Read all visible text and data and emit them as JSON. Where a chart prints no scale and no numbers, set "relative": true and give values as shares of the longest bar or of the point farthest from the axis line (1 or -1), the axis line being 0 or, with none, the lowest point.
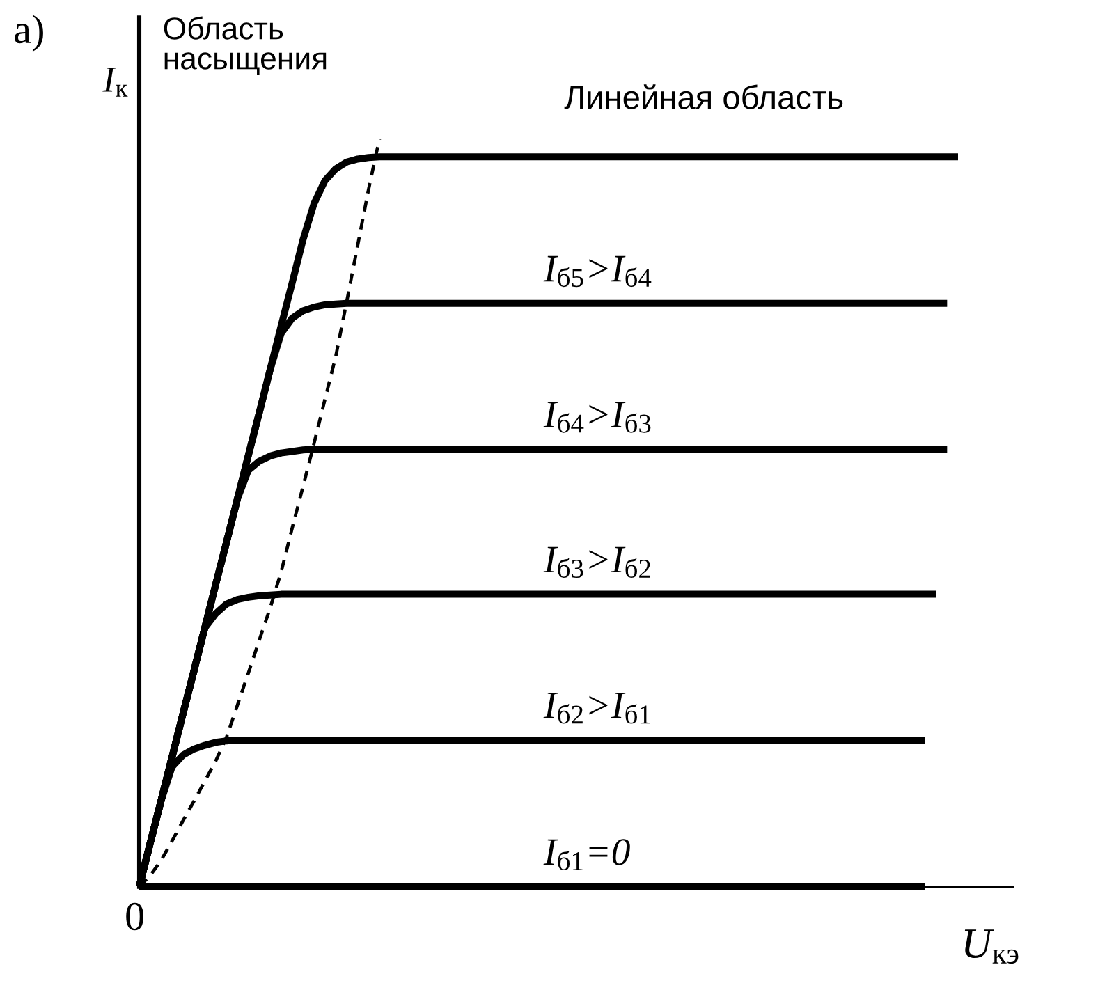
{
  "chart_data": {
    "type": "line",
    "relative": true,
    "xlabel": "U$_{кэ}$",
    "ylabel": "I$_{к}$",
    "tick_labels": false,
    "line_style": "solid",
    "annotations": [
      "а)",
      "Область\nнасыщения",
      "Линейная область",
      "0"
    ],
    "categories": [
      null,
      null,
      null,
      null,
      null,
      null,
      null,
      null,
      null,
      null,
      null,
      null,
      null,
      null,
      null,
      null,
      null,
      null,
      null,
      null,
      null,
      null,
      null,
      null,
      null,
      null,
      null,
      null,
      null,
      null,
      null,
      null,
      null,
      null,
      null,
      null,
      null,
      null,
      null,
      null,
      null,
      null,
      null,
      null,
      null,
      null,
      null,
      null,
      null,
      null,
      null,
      null,
      null,
      null,
      null,
      null,
      null,
      null,
      null,
      null,
      null,
      null,
      null,
      null,
      null,
      null,
      null,
      null,
      null,
      null,
      null,
      null,
      null,
      null,
      null,
      null,
      null,
      null,
      null,
      null,
      null
    ],
    "series": [
      {
        "color": "#000000",
        "values": [
          0,
          0.058,
          0.115,
          0.173,
          0.231,
          0.288,
          0.346,
          0.404,
          0.461,
          0.519,
          0.577,
          0.634,
          0.692,
          0.75,
          0.807,
          0.865,
          0.913,
          0.944,
          0.96,
          0.969,
          0.973,
          0.975,
          0.976,
          0.976,
          0.976,
          0.976,
          0.976,
          0.976,
          0.976,
          0.976,
          0.976,
          0.976,
          0.976,
          0.976,
          0.976,
          0.976,
          0.976,
          0.976,
          0.976,
          0.976,
          0.976,
          0.976,
          0.976,
          0.976,
          0.976,
          0.976,
          0.976,
          0.976,
          0.976,
          0.976,
          0.976,
          0.976,
          0.976,
          0.976,
          0.976,
          0.976,
          0.976,
          0.976,
          0.976,
          0.976,
          0.976,
          0.976,
          0.976,
          0.976,
          0.976,
          0.976,
          0.976,
          0.976,
          0.976,
          0.976,
          0.976,
          0.976,
          0.976,
          0.976,
          0.976,
          0.976,
          null,
          null,
          null,
          null,
          null
        ]
      },
      {
        "name": "I$_{б5}$>I$_{б4}$",
        "color": "#000000",
        "values": [
          0,
          0.058,
          0.115,
          0.173,
          0.231,
          0.288,
          0.346,
          0.404,
          0.461,
          0.519,
          0.577,
          0.634,
          0.692,
          0.74,
          0.76,
          0.77,
          0.775,
          0.778,
          0.779,
          0.78,
          0.78,
          0.78,
          0.78,
          0.78,
          0.78,
          0.78,
          0.78,
          0.78,
          0.78,
          0.78,
          0.78,
          0.78,
          0.78,
          0.78,
          0.78,
          0.78,
          0.78,
          0.78,
          0.78,
          0.78,
          0.78,
          0.78,
          0.78,
          0.78,
          0.78,
          0.78,
          0.78,
          0.78,
          0.78,
          0.78,
          0.78,
          0.78,
          0.78,
          0.78,
          0.78,
          0.78,
          0.78,
          0.78,
          0.78,
          0.78,
          0.78,
          0.78,
          0.78,
          0.78,
          0.78,
          0.78,
          0.78,
          0.78,
          0.78,
          0.78,
          0.78,
          0.78,
          0.78,
          0.78,
          0.78,
          null,
          null,
          null,
          null,
          null,
          null
        ]
      },
      {
        "name": "I$_{б4}$>I$_{б3}$",
        "color": "#000000",
        "values": [
          0,
          0.058,
          0.115,
          0.173,
          0.231,
          0.288,
          0.346,
          0.404,
          0.461,
          0.519,
          0.557,
          0.569,
          0.576,
          0.58,
          0.582,
          0.584,
          0.585,
          0.585,
          0.585,
          0.585,
          0.585,
          0.585,
          0.585,
          0.585,
          0.585,
          0.585,
          0.585,
          0.585,
          0.585,
          0.585,
          0.585,
          0.585,
          0.585,
          0.585,
          0.585,
          0.585,
          0.585,
          0.585,
          0.585,
          0.585,
          0.585,
          0.585,
          0.585,
          0.585,
          0.585,
          0.585,
          0.585,
          0.585,
          0.585,
          0.585,
          0.585,
          0.585,
          0.585,
          0.585,
          0.585,
          0.585,
          0.585,
          0.585,
          0.585,
          0.585,
          0.585,
          0.585,
          0.585,
          0.585,
          0.585,
          0.585,
          0.585,
          0.585,
          0.585,
          0.585,
          0.585,
          0.585,
          0.585,
          0.585,
          0.585,
          null,
          null,
          null,
          null,
          null,
          null
        ]
      },
      {
        "name": "I$_{б3}$>I$_{б2}$",
        "color": "#000000",
        "values": [
          0,
          0.058,
          0.115,
          0.173,
          0.231,
          0.288,
          0.346,
          0.365,
          0.378,
          0.384,
          0.387,
          0.389,
          0.39,
          0.391,
          0.391,
          0.391,
          0.391,
          0.391,
          0.391,
          0.391,
          0.391,
          0.391,
          0.391,
          0.391,
          0.391,
          0.391,
          0.391,
          0.391,
          0.391,
          0.391,
          0.391,
          0.391,
          0.391,
          0.391,
          0.391,
          0.391,
          0.391,
          0.391,
          0.391,
          0.391,
          0.391,
          0.391,
          0.391,
          0.391,
          0.391,
          0.391,
          0.391,
          0.391,
          0.391,
          0.391,
          0.391,
          0.391,
          0.391,
          0.391,
          0.391,
          0.391,
          0.391,
          0.391,
          0.391,
          0.391,
          0.391,
          0.391,
          0.391,
          0.391,
          0.391,
          0.391,
          0.391,
          0.391,
          0.391,
          0.391,
          0.391,
          0.391,
          0.391,
          0.391,
          null,
          null,
          null,
          null,
          null,
          null,
          null
        ]
      },
      {
        "name": "I$_{б2}$>I$_{б1}$",
        "color": "#000000",
        "values": [
          0,
          0.058,
          0.115,
          0.16,
          0.176,
          0.184,
          0.189,
          0.193,
          0.195,
          0.196,
          0.196,
          0.196,
          0.196,
          0.196,
          0.196,
          0.196,
          0.196,
          0.196,
          0.196,
          0.196,
          0.196,
          0.196,
          0.196,
          0.196,
          0.196,
          0.196,
          0.196,
          0.196,
          0.196,
          0.196,
          0.196,
          0.196,
          0.196,
          0.196,
          0.196,
          0.196,
          0.196,
          0.196,
          0.196,
          0.196,
          0.196,
          0.196,
          0.196,
          0.196,
          0.196,
          0.196,
          0.196,
          0.196,
          0.196,
          0.196,
          0.196,
          0.196,
          0.196,
          0.196,
          0.196,
          0.196,
          0.196,
          0.196,
          0.196,
          0.196,
          0.196,
          0.196,
          0.196,
          0.196,
          0.196,
          0.196,
          0.196,
          0.196,
          0.196,
          0.196,
          0.196,
          0.196,
          0.196,
          null,
          null,
          null,
          null,
          null,
          null,
          null,
          null
        ]
      },
      {
        "name": "I$_{б1}$=0",
        "color": "#000000",
        "values": [
          0,
          0,
          0,
          0,
          0,
          0,
          0,
          0,
          0,
          0,
          0,
          0,
          0,
          0,
          0,
          0,
          0,
          0,
          0,
          0,
          0,
          0,
          0,
          0,
          0,
          0,
          0,
          0,
          0,
          0,
          0,
          0,
          0,
          0,
          0,
          0,
          0,
          0,
          0,
          0,
          0,
          0,
          0,
          0,
          0,
          0,
          0,
          0,
          0,
          0,
          0,
          0,
          0,
          0,
          0,
          0,
          0,
          0,
          0,
          0,
          0,
          0,
          0,
          0,
          0,
          0,
          0,
          0,
          0,
          0,
          0,
          0,
          0,
          null,
          null,
          null,
          null,
          null,
          null,
          null,
          null
        ]
      },
      {
        "color": "#000000",
        "line_style": "dashed",
        "values": [
          0,
          0.015,
          0.035,
          0.061,
          0.088,
          0.114,
          0.141,
          0.168,
          0.2,
          0.243,
          0.286,
          0.33,
          0.373,
          0.421,
          0.479,
          0.535,
          0.592,
          0.651,
          0.709,
          0.782,
          0.857,
          0.932,
          1.0,
          null,
          null,
          null,
          null,
          null,
          null,
          null,
          null,
          null,
          null,
          null,
          null,
          null,
          null,
          null,
          null,
          null,
          null,
          null,
          null,
          null,
          null,
          null,
          null,
          null,
          null,
          null,
          null,
          null,
          null,
          null,
          null,
          null,
          null,
          null,
          null,
          null,
          null,
          null,
          null,
          null,
          null,
          null,
          null,
          null,
          null,
          null,
          null,
          null,
          null,
          null,
          null,
          null,
          null,
          null,
          null,
          null,
          null
        ]
      }
    ]
  }
}
